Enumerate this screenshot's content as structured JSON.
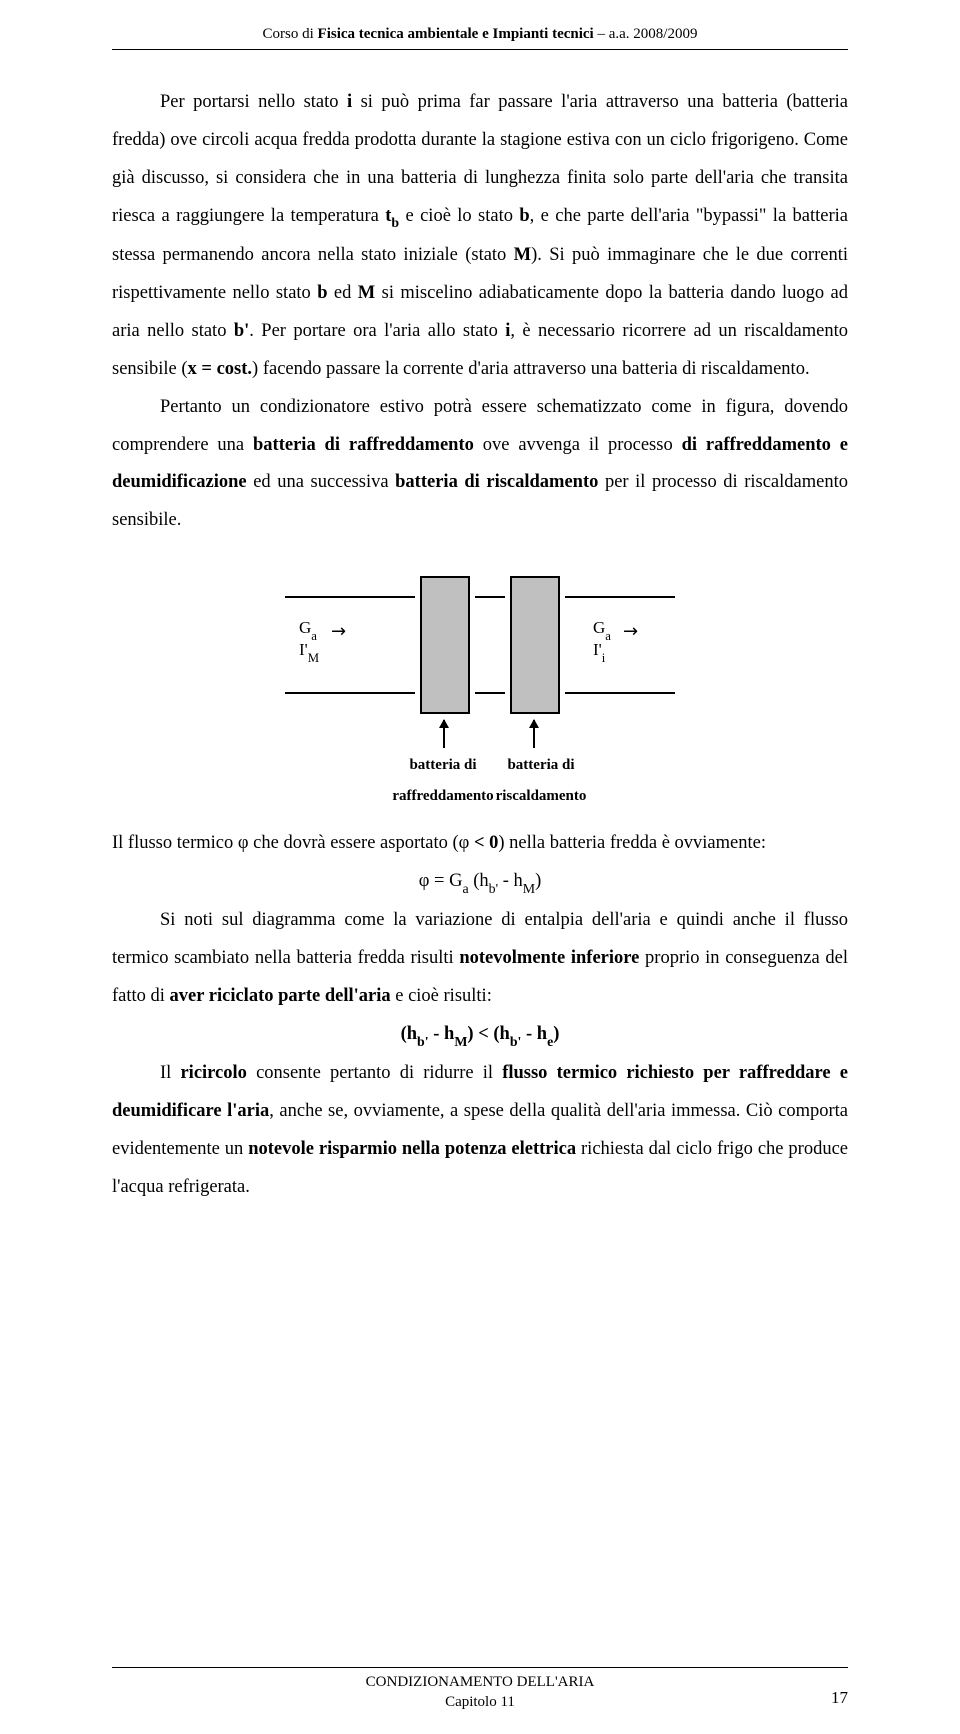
{
  "header": {
    "prefix": "Corso di ",
    "title": "Fisica tecnica ambientale e Impianti tecnici",
    "suffix": " – a.a. 2008/2009"
  },
  "p1": {
    "t1": "Per portarsi nello stato ",
    "i": "i",
    "t2": " si può prima far passare l'aria attraverso una batteria (batteria fredda) ove circoli acqua fredda prodotta durante la stagione estiva con un ciclo frigorigeno. Come già discusso, si considera che in una batteria di lunghezza finita solo parte dell'aria che transita riesca a raggiungere la temperatura ",
    "tb": "t",
    "tb_sub": "b",
    "t3": " e cioè lo stato ",
    "b": "b",
    "t4": ", e che parte dell'aria \"bypassi\" la batteria stessa permanendo ancora nella stato iniziale (stato ",
    "M": "M",
    "t5": "). Si può immaginare che le due correnti rispettivamente nello stato ",
    "b2": "b",
    "t6": " ed ",
    "M2": "M",
    "t7": " si miscelino adiabaticamente dopo la batteria dando luogo ad aria nello stato ",
    "bprime": "b'",
    "t8": ". Per portare ora l'aria allo stato ",
    "i2": "i",
    "t9": ", è necessario ricorrere ad un riscaldamento sensibile (",
    "xcost": "x = cost.",
    "t10": ") facendo passare la corrente d'aria attraverso una batteria di riscaldamento."
  },
  "p2": {
    "t1": "Pertanto un condizionatore estivo potrà essere schematizzato come in figura, dovendo comprendere una ",
    "b1": "batteria di raffreddamento",
    "t2": " ove avvenga il processo ",
    "b2": "di raffreddamento e deumidificazione",
    "t3": " ed una successiva ",
    "b3": "batteria di riscaldamento",
    "t4": " per il processo di riscaldamento sensibile."
  },
  "diagram": {
    "Ga": "G",
    "Ga_sub": "a",
    "IM_prime": "I'",
    "IM_sub_left": "M",
    "IM_sub_right": "i",
    "arrow_right": "→",
    "label_cold_1": "batteria di",
    "label_cold_2": "raffreddamento",
    "label_hot_1": "batteria di",
    "label_hot_2": "riscaldamento"
  },
  "p3": {
    "t1": "Il flusso termico φ che dovrà essere asportato (φ ",
    "lt0": "< 0",
    "t2": ") nella batteria fredda è ovviamente:"
  },
  "eq1": "φ = G",
  "eq1_a": "a",
  "eq1_mid": " (h",
  "eq1_b": "b'",
  "eq1_mid2": " - h",
  "eq1_M": "M",
  "eq1_end": ")",
  "p4": {
    "t1": "Si noti sul diagramma come la variazione di entalpia dell'aria e quindi anche il flusso termico scambiato nella batteria fredda risulti ",
    "b1": "notevolmente inferiore",
    "t2": " proprio in conseguenza del fatto di ",
    "b2": "aver riciclato parte dell'aria",
    "t3": " e cioè risulti:"
  },
  "eq2_l": "(h",
  "eq2_b1": "b'",
  "eq2_m1": " - h",
  "eq2_M": "M",
  "eq2_m2": ") < (h",
  "eq2_b2": "b'",
  "eq2_m3": " - h",
  "eq2_e": "e",
  "eq2_end": ")",
  "p5": {
    "t1": "Il ",
    "b1": "ricircolo",
    "t2": " consente pertanto di ridurre il ",
    "b2": "flusso termico richiesto per raffreddare e deumidificare l'aria",
    "t3": ", anche se, ovviamente, a spese della qualità dell'aria immessa. Ciò comporta evidentemente un ",
    "b3": "notevole risparmio nella potenza elettrica",
    "t4": " richiesta dal ciclo frigo che produce l'acqua refrigerata."
  },
  "footer": {
    "line1": "CONDIZIONAMENTO DELL'ARIA",
    "line2": "Capitolo 11",
    "page": "17"
  },
  "colors": {
    "coil_fill": "#c0c0c0",
    "text": "#000000",
    "bg": "#ffffff"
  }
}
